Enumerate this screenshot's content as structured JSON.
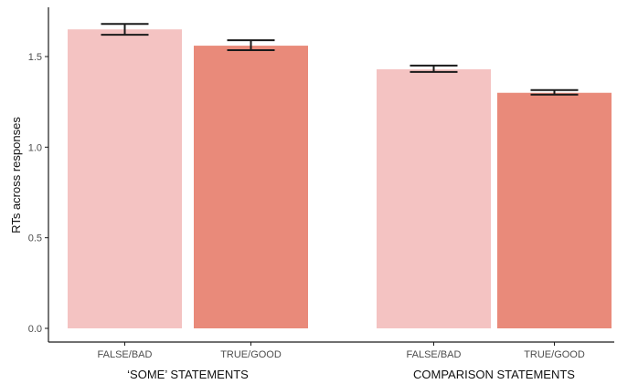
{
  "chart_data": {
    "type": "bar",
    "ylabel": "RTs across responses",
    "ylim": [
      0,
      1.75
    ],
    "yticks": [
      "0.0",
      "0.5",
      "1.0",
      "1.5"
    ],
    "grid": false,
    "groups": [
      {
        "label": "‘SOME’ STATEMENTS",
        "bars": [
          {
            "category": "FALSE/BAD",
            "value": 1.65,
            "err_low": 1.62,
            "err_high": 1.68
          },
          {
            "category": "TRUE/GOOD",
            "value": 1.56,
            "err_low": 1.535,
            "err_high": 1.59
          }
        ]
      },
      {
        "label": "COMPARISON STATEMENTS",
        "bars": [
          {
            "category": "FALSE/BAD",
            "value": 1.43,
            "err_low": 1.415,
            "err_high": 1.45
          },
          {
            "category": "TRUE/GOOD",
            "value": 1.3,
            "err_low": 1.29,
            "err_high": 1.315
          }
        ]
      }
    ],
    "colors": {
      "FALSE/BAD": "#f4c3c2",
      "TRUE/GOOD": "#e98a7a",
      "error_bar": "#1a1a1a",
      "axis": "#1a1a1a"
    }
  }
}
